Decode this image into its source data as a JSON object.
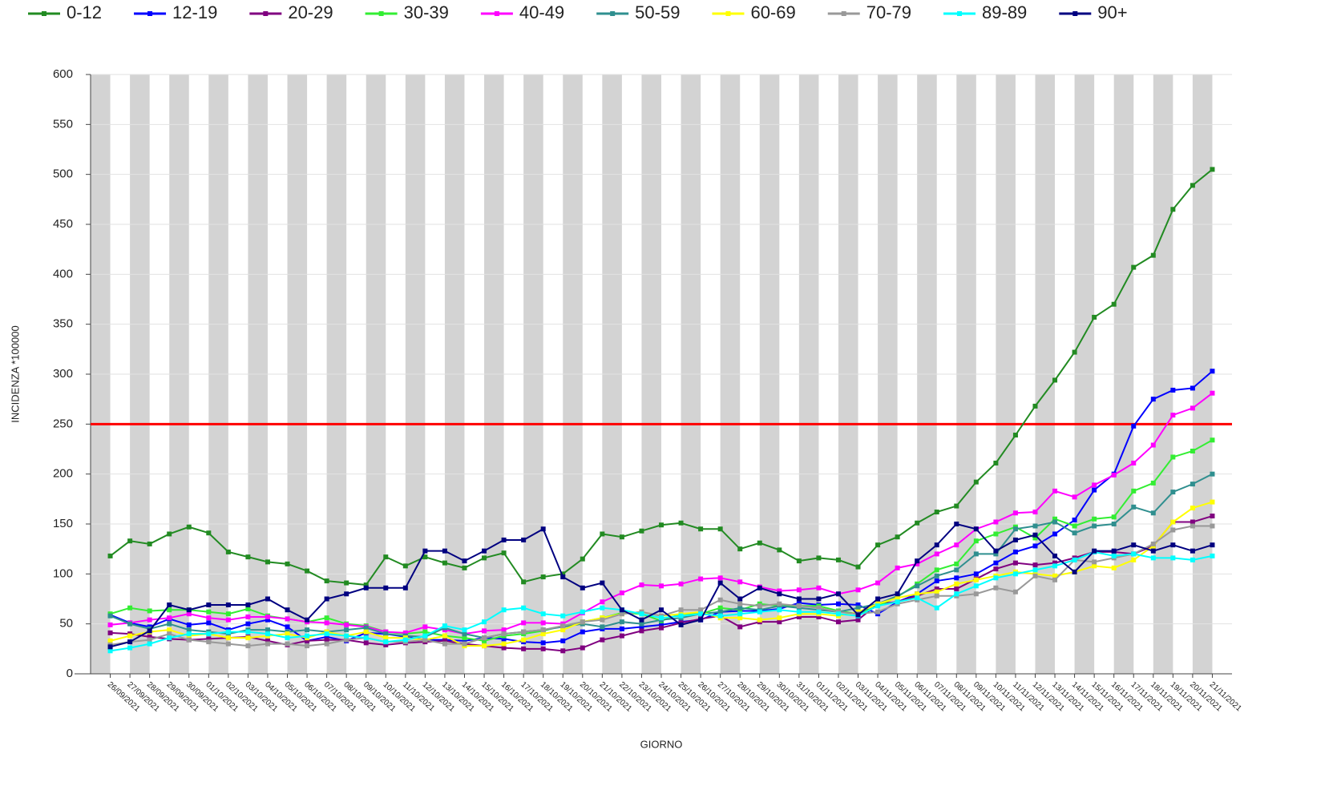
{
  "chart_data": {
    "type": "line",
    "x_label": "GIORNO",
    "y_label": "INCIDENZA *100000",
    "categories": [
      "26/09/2021",
      "27/09/2021",
      "28/09/2021",
      "29/09/2021",
      "30/09/2021",
      "01/10/2021",
      "02/10/2021",
      "03/10/2021",
      "04/10/2021",
      "05/10/2021",
      "06/10/2021",
      "07/10/2021",
      "08/10/2021",
      "09/10/2021",
      "10/10/2021",
      "11/10/2021",
      "12/10/2021",
      "13/10/2021",
      "14/10/2021",
      "15/10/2021",
      "16/10/2021",
      "17/10/2021",
      "18/10/2021",
      "19/10/2021",
      "20/10/2021",
      "21/10/2021",
      "22/10/2021",
      "23/10/2021",
      "24/10/2021",
      "25/10/2021",
      "26/10/2021",
      "27/10/2021",
      "28/10/2021",
      "29/10/2021",
      "30/10/2021",
      "31/10/2021",
      "01/11/2021",
      "02/11/2021",
      "03/11/2021",
      "04/11/2021",
      "05/11/2021",
      "06/11/2021",
      "07/11/2021",
      "08/11/2021",
      "09/11/2021",
      "10/11/2021",
      "11/11/2021",
      "12/11/2021",
      "13/11/2021",
      "14/11/2021",
      "15/11/2021",
      "16/11/2021",
      "17/11/2021",
      "18/11/2021",
      "19/11/2021",
      "20/11/2021",
      "21/11/2021"
    ],
    "series": [
      {
        "name": "0-12",
        "color": "#228b22",
        "values": [
          118,
          133,
          130,
          140,
          147,
          141,
          122,
          117,
          112,
          110,
          103,
          93,
          91,
          89,
          117,
          108,
          117,
          111,
          106,
          116,
          121,
          92,
          97,
          100,
          115,
          140,
          137,
          143,
          149,
          151,
          145,
          145,
          125,
          131,
          124,
          113,
          116,
          114,
          107,
          129,
          137,
          151,
          162,
          168,
          192,
          211,
          239,
          268,
          294,
          322,
          357,
          370,
          407,
          419,
          465,
          489,
          505
        ]
      },
      {
        "name": "12-19",
        "color": "#0000ff",
        "values": [
          59,
          51,
          47,
          55,
          49,
          51,
          44,
          50,
          54,
          47,
          33,
          37,
          33,
          41,
          40,
          37,
          34,
          34,
          33,
          36,
          35,
          32,
          31,
          33,
          42,
          45,
          45,
          47,
          49,
          52,
          54,
          62,
          63,
          63,
          65,
          71,
          69,
          70,
          69,
          60,
          72,
          80,
          93,
          96,
          100,
          111,
          122,
          128,
          140,
          154,
          184,
          200,
          248,
          275,
          284,
          286,
          303
        ]
      },
      {
        "name": "20-29",
        "color": "#800080",
        "values": [
          41,
          40,
          37,
          35,
          34,
          35,
          36,
          37,
          33,
          29,
          33,
          34,
          34,
          31,
          29,
          31,
          32,
          33,
          30,
          28,
          26,
          25,
          25,
          23,
          26,
          34,
          38,
          43,
          46,
          51,
          55,
          58,
          47,
          52,
          52,
          57,
          57,
          52,
          54,
          70,
          72,
          78,
          85,
          85,
          95,
          105,
          111,
          109,
          111,
          116,
          122,
          122,
          120,
          128,
          152,
          152,
          158
        ]
      },
      {
        "name": "30-39",
        "color": "#33ee33",
        "values": [
          60,
          66,
          63,
          64,
          64,
          62,
          60,
          65,
          58,
          55,
          52,
          56,
          50,
          48,
          42,
          40,
          42,
          38,
          36,
          33,
          38,
          40,
          43,
          48,
          52,
          56,
          61,
          60,
          53,
          60,
          60,
          66,
          64,
          70,
          68,
          68,
          68,
          63,
          60,
          68,
          77,
          90,
          104,
          110,
          133,
          140,
          147,
          136,
          155,
          148,
          155,
          157,
          183,
          191,
          217,
          223,
          234
        ]
      },
      {
        "name": "40-49",
        "color": "#ff00ff",
        "values": [
          49,
          51,
          54,
          56,
          60,
          56,
          54,
          57,
          57,
          55,
          52,
          51,
          49,
          47,
          42,
          41,
          47,
          44,
          40,
          43,
          44,
          51,
          51,
          50,
          61,
          72,
          81,
          89,
          88,
          90,
          95,
          96,
          92,
          87,
          83,
          84,
          86,
          80,
          84,
          91,
          106,
          110,
          120,
          129,
          145,
          152,
          161,
          162,
          183,
          177,
          189,
          199,
          211,
          229,
          259,
          266,
          281
        ]
      },
      {
        "name": "50-59",
        "color": "#2f8f8f",
        "values": [
          58,
          50,
          45,
          50,
          44,
          42,
          40,
          44,
          44,
          42,
          44,
          42,
          44,
          46,
          40,
          38,
          37,
          46,
          40,
          36,
          40,
          42,
          44,
          47,
          50,
          47,
          52,
          50,
          54,
          56,
          60,
          62,
          66,
          64,
          68,
          66,
          64,
          62,
          66,
          70,
          78,
          88,
          98,
          104,
          120,
          120,
          145,
          148,
          152,
          141,
          148,
          150,
          167,
          161,
          182,
          190,
          200
        ]
      },
      {
        "name": "60-69",
        "color": "#ffff00",
        "values": [
          33,
          38,
          42,
          44,
          38,
          40,
          36,
          36,
          38,
          40,
          36,
          42,
          38,
          42,
          36,
          36,
          34,
          38,
          28,
          28,
          30,
          34,
          40,
          44,
          52,
          56,
          60,
          62,
          58,
          60,
          62,
          56,
          56,
          54,
          56,
          60,
          60,
          58,
          62,
          70,
          76,
          80,
          82,
          90,
          94,
          98,
          102,
          100,
          98,
          102,
          108,
          106,
          114,
          128,
          152,
          166,
          172
        ]
      },
      {
        "name": "70-79",
        "color": "#999999",
        "values": [
          29,
          32,
          34,
          40,
          34,
          32,
          30,
          28,
          30,
          30,
          28,
          30,
          34,
          36,
          32,
          32,
          34,
          30,
          30,
          36,
          40,
          42,
          44,
          48,
          52,
          54,
          60,
          62,
          58,
          64,
          64,
          74,
          70,
          68,
          70,
          68,
          66,
          62,
          60,
          62,
          70,
          74,
          78,
          78,
          80,
          86,
          82,
          98,
          94,
          114,
          112,
          116,
          120,
          130,
          144,
          148,
          148
        ]
      },
      {
        "name": "89-89",
        "color": "#00ffff",
        "values": [
          23,
          26,
          30,
          36,
          40,
          40,
          42,
          42,
          40,
          36,
          38,
          40,
          38,
          36,
          32,
          34,
          38,
          48,
          44,
          52,
          64,
          66,
          60,
          58,
          62,
          66,
          64,
          60,
          56,
          58,
          60,
          58,
          60,
          62,
          64,
          62,
          62,
          60,
          58,
          68,
          72,
          76,
          66,
          80,
          88,
          96,
          100,
          104,
          108,
          114,
          122,
          118,
          120,
          116,
          116,
          114,
          118
        ]
      },
      {
        "name": "90+",
        "color": "#000080",
        "values": [
          27,
          32,
          43,
          69,
          64,
          69,
          69,
          69,
          75,
          64,
          54,
          75,
          80,
          86,
          86,
          86,
          123,
          123,
          113,
          123,
          134,
          134,
          145,
          97,
          86,
          91,
          64,
          54,
          64,
          49,
          54,
          91,
          75,
          86,
          80,
          75,
          75,
          80,
          59,
          75,
          80,
          113,
          129,
          150,
          145,
          123,
          134,
          139,
          118,
          102,
          123,
          123,
          129,
          123,
          129,
          123,
          129
        ]
      }
    ],
    "reference_line": {
      "value": 250,
      "color": "#ff0000"
    },
    "ylim": [
      0,
      600
    ],
    "yticks": [
      0,
      50,
      100,
      150,
      200,
      250,
      300,
      350,
      400,
      450,
      500,
      550,
      600
    ],
    "grid": true,
    "stripes": true,
    "legend": "top"
  }
}
